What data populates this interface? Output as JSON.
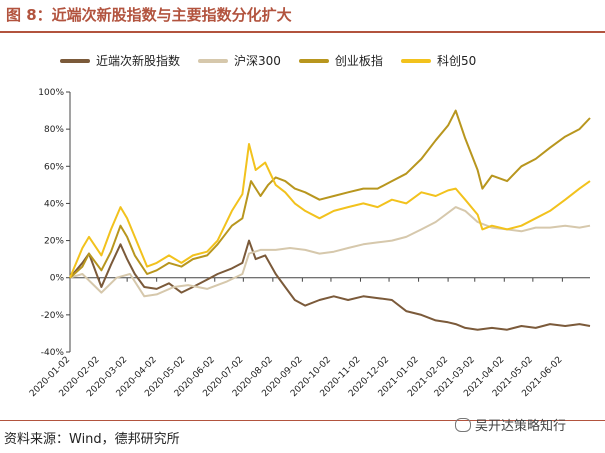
{
  "header": {
    "title": "图 8：近端次新股指数与主要指数分化扩大"
  },
  "footer": {
    "source": "资料来源：Wind，德邦研究所",
    "watermark": "吴开达策略知行"
  },
  "chart_data": {
    "type": "line",
    "ylim": [
      -40,
      100
    ],
    "yticks": [
      "-40%",
      "-20%",
      "0%",
      "20%",
      "40%",
      "60%",
      "80%",
      "100%"
    ],
    "ytick_values": [
      -40,
      -20,
      0,
      20,
      40,
      60,
      80,
      100
    ],
    "x_start": "2020-01-02",
    "x_end": "2021-07-01",
    "xticks": [
      "2020-01-02",
      "2020-02-02",
      "2020-03-02",
      "2020-04-02",
      "2020-05-02",
      "2020-06-02",
      "2020-07-02",
      "2020-08-02",
      "2020-09-02",
      "2020-10-02",
      "2020-11-02",
      "2020-12-02",
      "2021-01-02",
      "2021-02-02",
      "2021-03-02",
      "2021-04-02",
      "2021-05-02",
      "2021-06-02"
    ],
    "legend_position": "top",
    "grid": false,
    "series": [
      {
        "name": "近端次新股指数",
        "color": "#7b5a3a",
        "points": [
          [
            "2020-01-02",
            0
          ],
          [
            "2020-01-15",
            8
          ],
          [
            "2020-01-22",
            13
          ],
          [
            "2020-02-04",
            -5
          ],
          [
            "2020-02-14",
            7
          ],
          [
            "2020-02-24",
            18
          ],
          [
            "2020-03-02",
            10
          ],
          [
            "2020-03-10",
            2
          ],
          [
            "2020-03-20",
            -5
          ],
          [
            "2020-04-02",
            -6
          ],
          [
            "2020-04-15",
            -3
          ],
          [
            "2020-04-28",
            -8
          ],
          [
            "2020-05-10",
            -5
          ],
          [
            "2020-05-25",
            -1
          ],
          [
            "2020-06-05",
            2
          ],
          [
            "2020-06-20",
            5
          ],
          [
            "2020-07-01",
            8
          ],
          [
            "2020-07-08",
            20
          ],
          [
            "2020-07-15",
            10
          ],
          [
            "2020-07-25",
            12
          ],
          [
            "2020-08-05",
            2
          ],
          [
            "2020-08-15",
            -5
          ],
          [
            "2020-08-25",
            -12
          ],
          [
            "2020-09-05",
            -15
          ],
          [
            "2020-09-20",
            -12
          ],
          [
            "2020-10-05",
            -10
          ],
          [
            "2020-10-20",
            -12
          ],
          [
            "2020-11-05",
            -10
          ],
          [
            "2020-11-20",
            -11
          ],
          [
            "2020-12-05",
            -12
          ],
          [
            "2020-12-20",
            -18
          ],
          [
            "2021-01-05",
            -20
          ],
          [
            "2021-01-20",
            -23
          ],
          [
            "2021-02-02",
            -24
          ],
          [
            "2021-02-10",
            -25
          ],
          [
            "2021-02-20",
            -27
          ],
          [
            "2021-03-05",
            -28
          ],
          [
            "2021-03-20",
            -27
          ],
          [
            "2021-04-05",
            -28
          ],
          [
            "2021-04-20",
            -26
          ],
          [
            "2021-05-05",
            -27
          ],
          [
            "2021-05-20",
            -25
          ],
          [
            "2021-06-05",
            -26
          ],
          [
            "2021-06-20",
            -25
          ],
          [
            "2021-07-01",
            -26
          ]
        ]
      },
      {
        "name": "沪深300",
        "color": "#d6c8ac",
        "points": [
          [
            "2020-01-02",
            0
          ],
          [
            "2020-01-15",
            2
          ],
          [
            "2020-02-04",
            -8
          ],
          [
            "2020-02-20",
            0
          ],
          [
            "2020-03-05",
            2
          ],
          [
            "2020-03-20",
            -10
          ],
          [
            "2020-04-02",
            -9
          ],
          [
            "2020-04-20",
            -5
          ],
          [
            "2020-05-05",
            -4
          ],
          [
            "2020-05-25",
            -6
          ],
          [
            "2020-06-15",
            -2
          ],
          [
            "2020-07-01",
            2
          ],
          [
            "2020-07-08",
            13
          ],
          [
            "2020-07-20",
            15
          ],
          [
            "2020-08-05",
            15
          ],
          [
            "2020-08-20",
            16
          ],
          [
            "2020-09-05",
            15
          ],
          [
            "2020-09-20",
            13
          ],
          [
            "2020-10-05",
            14
          ],
          [
            "2020-10-20",
            16
          ],
          [
            "2020-11-05",
            18
          ],
          [
            "2020-11-20",
            19
          ],
          [
            "2020-12-05",
            20
          ],
          [
            "2020-12-20",
            22
          ],
          [
            "2021-01-05",
            26
          ],
          [
            "2021-01-20",
            30
          ],
          [
            "2021-02-10",
            38
          ],
          [
            "2021-02-20",
            36
          ],
          [
            "2021-03-05",
            30
          ],
          [
            "2021-03-20",
            27
          ],
          [
            "2021-04-05",
            26
          ],
          [
            "2021-04-20",
            25
          ],
          [
            "2021-05-05",
            27
          ],
          [
            "2021-05-20",
            27
          ],
          [
            "2021-06-05",
            28
          ],
          [
            "2021-06-20",
            27
          ],
          [
            "2021-07-01",
            28
          ]
        ]
      },
      {
        "name": "创业板指",
        "color": "#b8961e",
        "points": [
          [
            "2020-01-02",
            0
          ],
          [
            "2020-01-15",
            6
          ],
          [
            "2020-01-22",
            13
          ],
          [
            "2020-02-04",
            4
          ],
          [
            "2020-02-14",
            14
          ],
          [
            "2020-02-24",
            28
          ],
          [
            "2020-03-02",
            22
          ],
          [
            "2020-03-10",
            12
          ],
          [
            "2020-03-23",
            2
          ],
          [
            "2020-04-02",
            4
          ],
          [
            "2020-04-15",
            8
          ],
          [
            "2020-04-28",
            6
          ],
          [
            "2020-05-10",
            10
          ],
          [
            "2020-05-25",
            12
          ],
          [
            "2020-06-05",
            18
          ],
          [
            "2020-06-20",
            28
          ],
          [
            "2020-07-01",
            32
          ],
          [
            "2020-07-10",
            52
          ],
          [
            "2020-07-20",
            44
          ],
          [
            "2020-07-28",
            50
          ],
          [
            "2020-08-05",
            54
          ],
          [
            "2020-08-15",
            52
          ],
          [
            "2020-08-25",
            48
          ],
          [
            "2020-09-05",
            46
          ],
          [
            "2020-09-20",
            42
          ],
          [
            "2020-10-05",
            44
          ],
          [
            "2020-10-20",
            46
          ],
          [
            "2020-11-05",
            48
          ],
          [
            "2020-11-20",
            48
          ],
          [
            "2020-12-05",
            52
          ],
          [
            "2020-12-20",
            56
          ],
          [
            "2021-01-05",
            64
          ],
          [
            "2021-01-20",
            74
          ],
          [
            "2021-02-02",
            82
          ],
          [
            "2021-02-10",
            90
          ],
          [
            "2021-02-20",
            75
          ],
          [
            "2021-03-05",
            58
          ],
          [
            "2021-03-10",
            48
          ],
          [
            "2021-03-20",
            55
          ],
          [
            "2021-04-05",
            52
          ],
          [
            "2021-04-20",
            60
          ],
          [
            "2021-05-05",
            64
          ],
          [
            "2021-05-20",
            70
          ],
          [
            "2021-06-05",
            76
          ],
          [
            "2021-06-20",
            80
          ],
          [
            "2021-07-01",
            86
          ]
        ]
      },
      {
        "name": "科创50",
        "color": "#f2c21d",
        "points": [
          [
            "2020-01-02",
            0
          ],
          [
            "2020-01-15",
            16
          ],
          [
            "2020-01-22",
            22
          ],
          [
            "2020-02-04",
            12
          ],
          [
            "2020-02-14",
            26
          ],
          [
            "2020-02-24",
            38
          ],
          [
            "2020-03-02",
            32
          ],
          [
            "2020-03-10",
            22
          ],
          [
            "2020-03-23",
            6
          ],
          [
            "2020-04-02",
            8
          ],
          [
            "2020-04-15",
            12
          ],
          [
            "2020-04-28",
            8
          ],
          [
            "2020-05-10",
            12
          ],
          [
            "2020-05-25",
            14
          ],
          [
            "2020-06-05",
            20
          ],
          [
            "2020-06-20",
            36
          ],
          [
            "2020-07-01",
            45
          ],
          [
            "2020-07-08",
            72
          ],
          [
            "2020-07-15",
            58
          ],
          [
            "2020-07-25",
            62
          ],
          [
            "2020-08-05",
            50
          ],
          [
            "2020-08-15",
            46
          ],
          [
            "2020-08-25",
            40
          ],
          [
            "2020-09-05",
            36
          ],
          [
            "2020-09-20",
            32
          ],
          [
            "2020-10-05",
            36
          ],
          [
            "2020-10-20",
            38
          ],
          [
            "2020-11-05",
            40
          ],
          [
            "2020-11-20",
            38
          ],
          [
            "2020-12-05",
            42
          ],
          [
            "2020-12-20",
            40
          ],
          [
            "2021-01-05",
            46
          ],
          [
            "2021-01-20",
            44
          ],
          [
            "2021-02-02",
            47
          ],
          [
            "2021-02-10",
            48
          ],
          [
            "2021-02-20",
            42
          ],
          [
            "2021-03-05",
            34
          ],
          [
            "2021-03-10",
            26
          ],
          [
            "2021-03-20",
            28
          ],
          [
            "2021-04-05",
            26
          ],
          [
            "2021-04-20",
            28
          ],
          [
            "2021-05-05",
            32
          ],
          [
            "2021-05-20",
            36
          ],
          [
            "2021-06-05",
            42
          ],
          [
            "2021-06-20",
            48
          ],
          [
            "2021-07-01",
            52
          ]
        ]
      }
    ]
  }
}
